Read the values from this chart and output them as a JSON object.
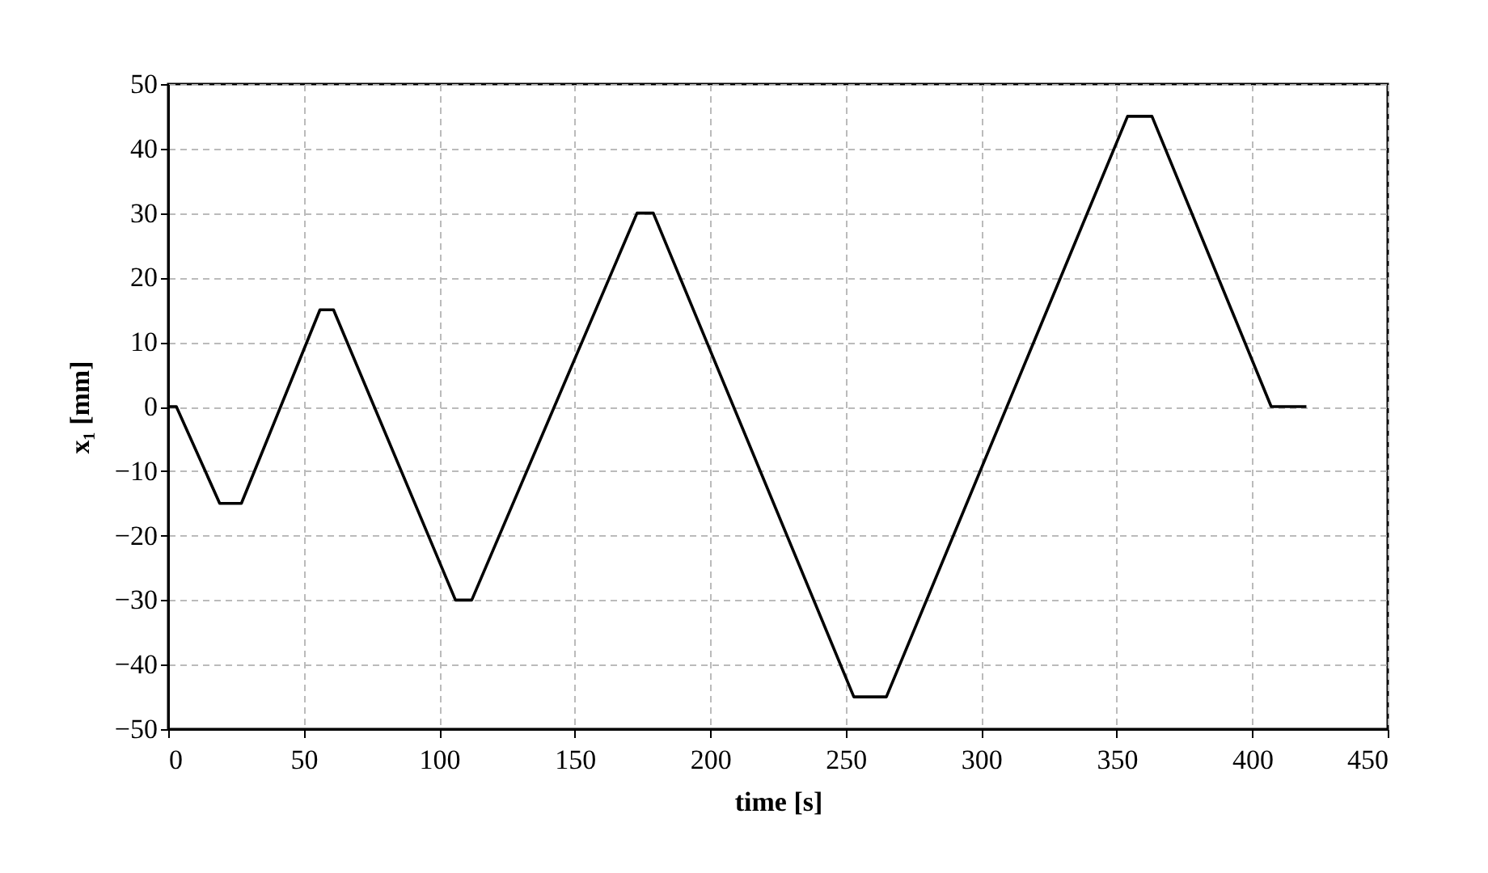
{
  "chart_data": {
    "type": "line",
    "xlabel": "time  [s]",
    "ylabel": "x₁ [mm]",
    "x": [
      0,
      3,
      19,
      27,
      56,
      61,
      106,
      112,
      173,
      179,
      253,
      265,
      354,
      363,
      407,
      420
    ],
    "series": [
      {
        "color": "#000000",
        "values": [
          0,
          0,
          -15,
          -15,
          15,
          15,
          -30,
          -30,
          30,
          30,
          -45,
          -45,
          45,
          45,
          0,
          0
        ]
      }
    ],
    "xlim": [
      0,
      450
    ],
    "xticks": [
      0,
      50,
      100,
      150,
      200,
      250,
      300,
      350,
      400,
      450
    ],
    "ylim": [
      -50,
      50
    ],
    "yticks": [
      -50,
      -40,
      -30,
      -20,
      -10,
      0,
      10,
      20,
      30,
      40,
      50
    ],
    "grid": true,
    "legend": false,
    "marker": "none",
    "line_style": "solid"
  }
}
